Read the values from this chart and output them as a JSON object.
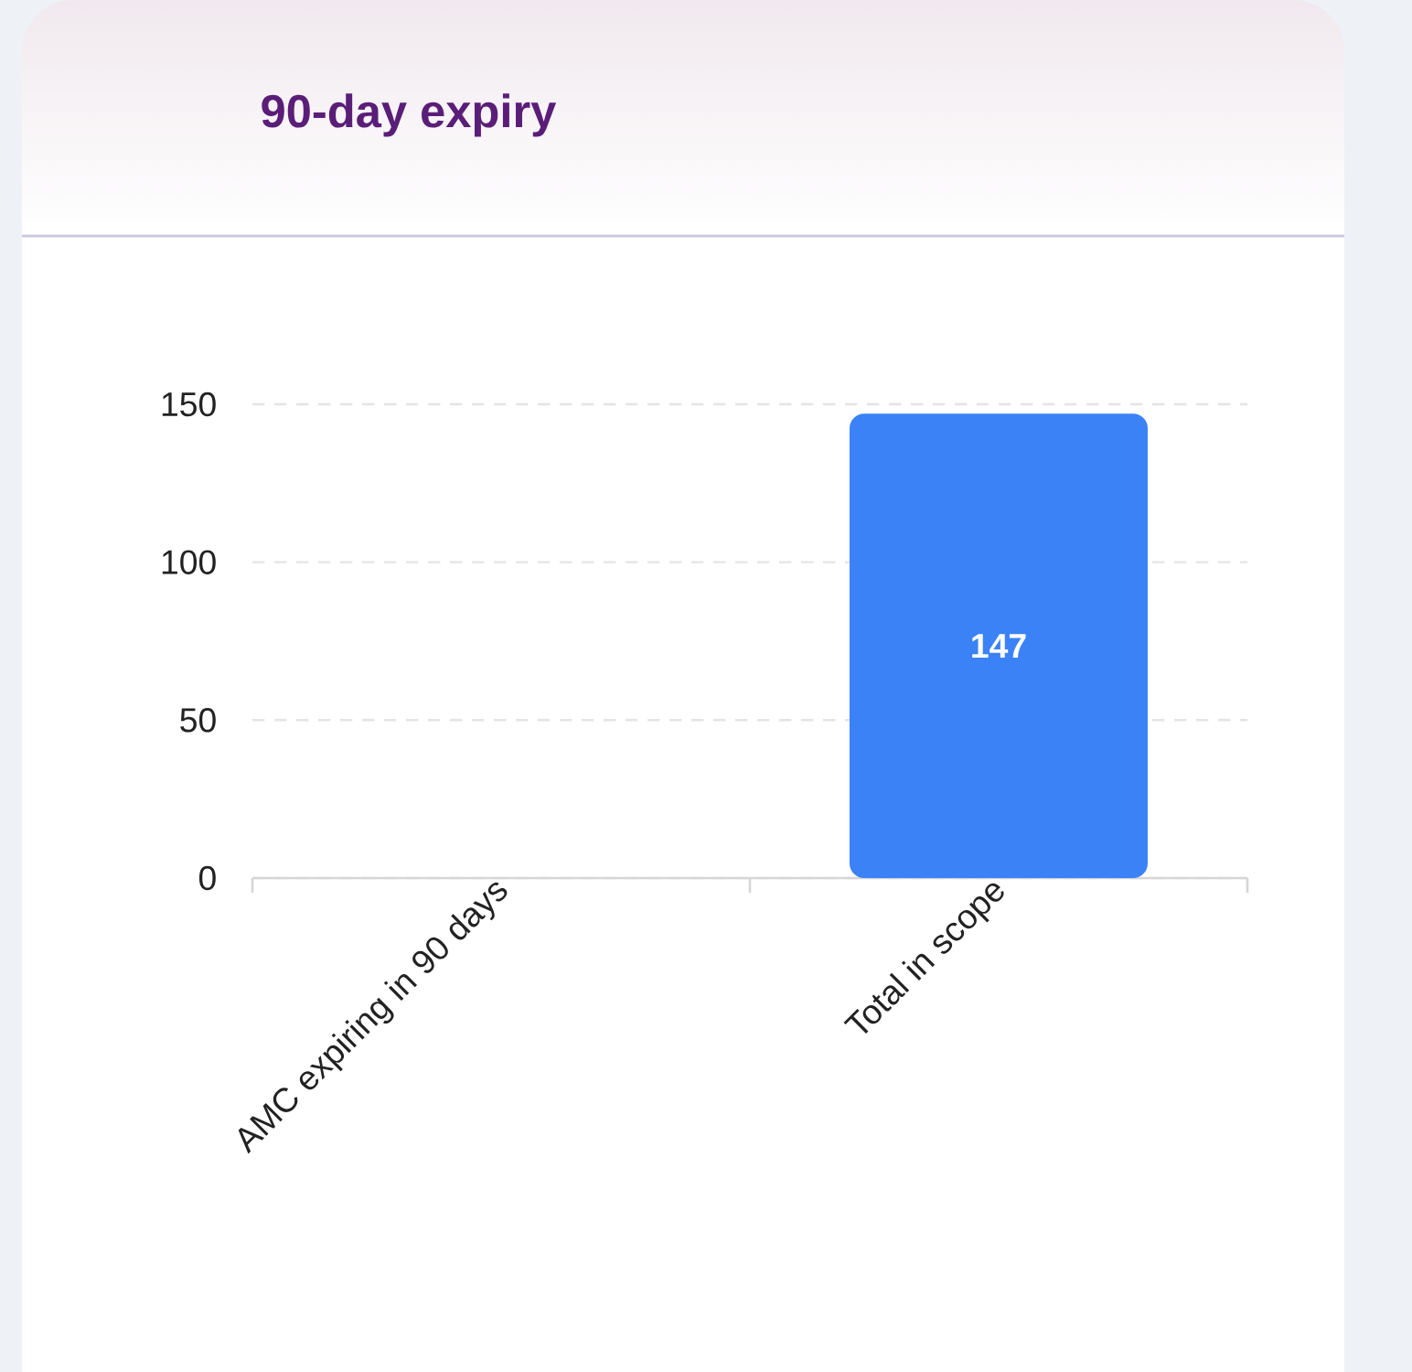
{
  "chart_data": {
    "type": "bar",
    "title": "90-day expiry",
    "categories": [
      "AMC expiring in 90 days",
      "Total in scope"
    ],
    "values": [
      0,
      147
    ],
    "color": "#3b82f6",
    "value_labels": [
      null,
      "147"
    ],
    "ylim": [
      0,
      150
    ],
    "yticks": [
      0,
      50,
      100,
      150
    ],
    "grid": "y"
  }
}
